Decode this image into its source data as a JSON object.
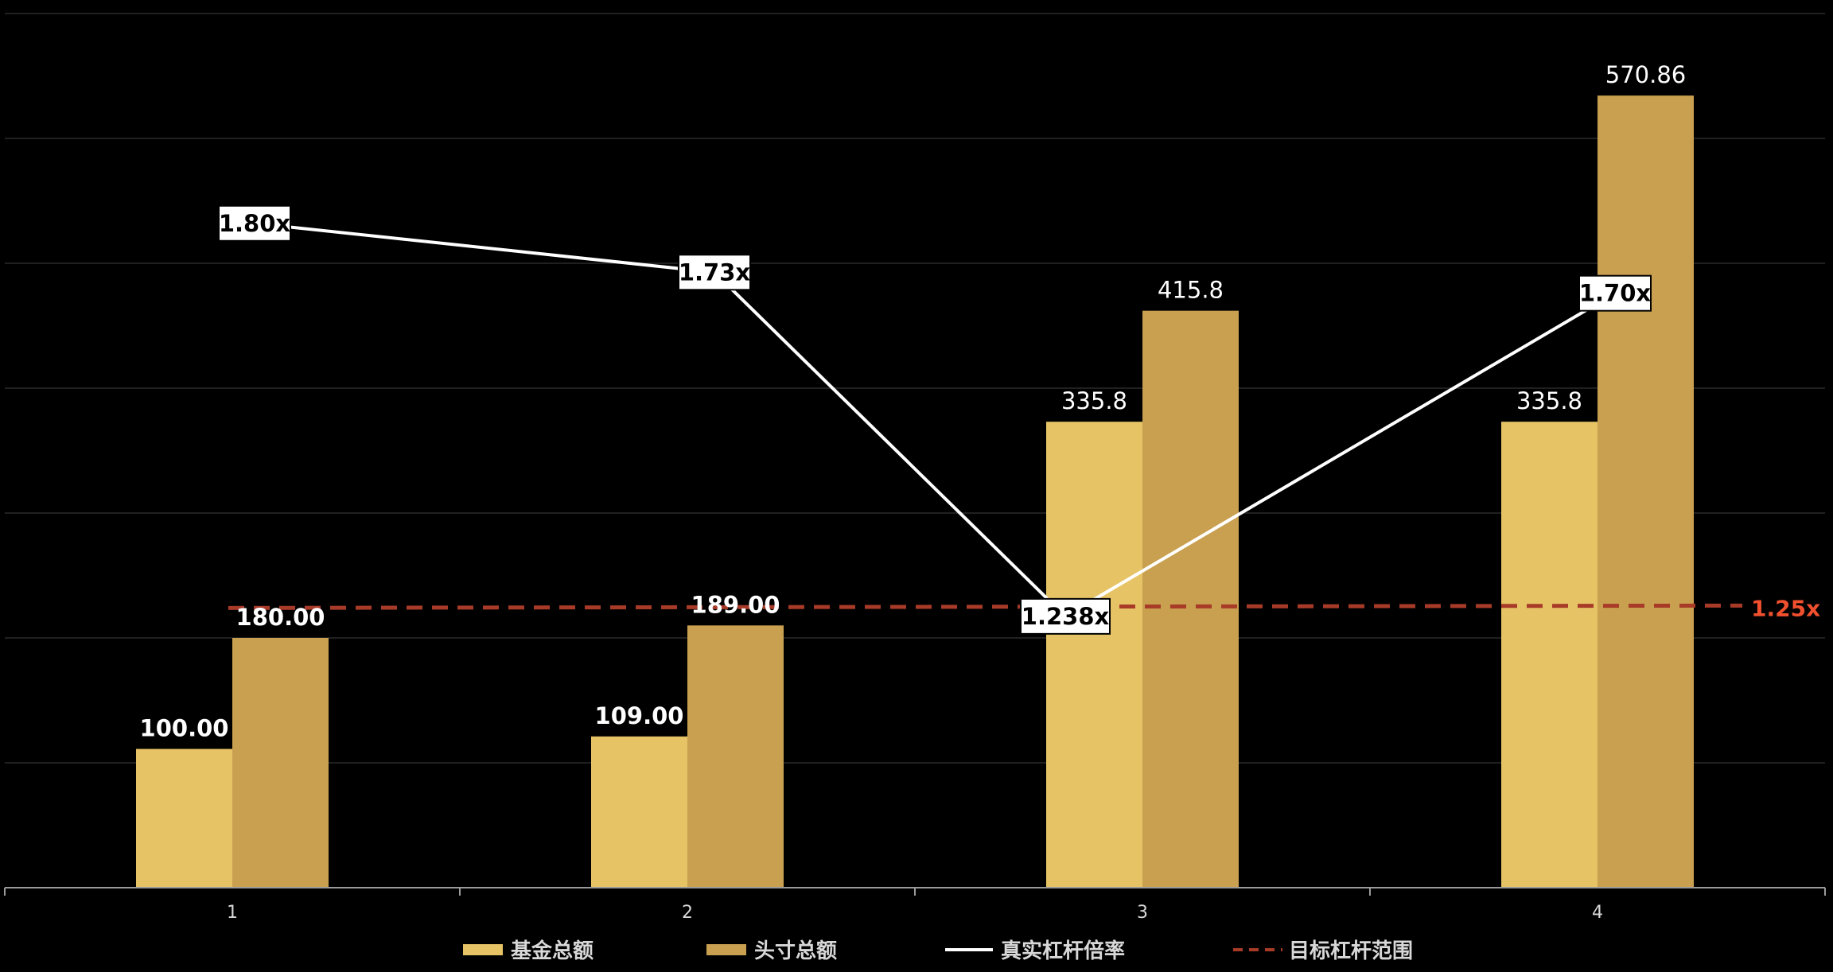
{
  "chart_data": {
    "type": "bar",
    "categories": [
      "1",
      "2",
      "3",
      "4"
    ],
    "series": [
      {
        "name": "基金总额",
        "values": [
          100.0,
          109.0,
          335.8,
          335.8
        ],
        "labels": [
          "100.00",
          "109.00",
          "335.8",
          "335.8"
        ],
        "color": "#e6c466",
        "kind": "bar"
      },
      {
        "name": "头寸总额",
        "values": [
          180.0,
          189.0,
          415.8,
          570.86
        ],
        "labels": [
          "180.00",
          "189.00",
          "415.8",
          "570.86"
        ],
        "color": "#c9a050",
        "kind": "bar"
      },
      {
        "name": "真实杠杆倍率",
        "values": [
          1.8,
          1.73,
          1.238,
          1.7
        ],
        "labels": [
          "1.80x",
          "1.73x",
          "1.238x",
          "1.70x"
        ],
        "color": "#ffffff",
        "kind": "line"
      },
      {
        "name": "目标杠杆范围",
        "values": [
          1.25,
          1.25,
          1.25,
          1.25
        ],
        "labels": [
          "1.25x"
        ],
        "color": "#a83a28",
        "label_color": "#f0502e",
        "kind": "dashed-line"
      }
    ],
    "ylim_bars": [
      0,
      630
    ],
    "ylim_ratio": [
      0.85,
      2.1
    ],
    "grid": true,
    "legend_position": "bottom"
  }
}
